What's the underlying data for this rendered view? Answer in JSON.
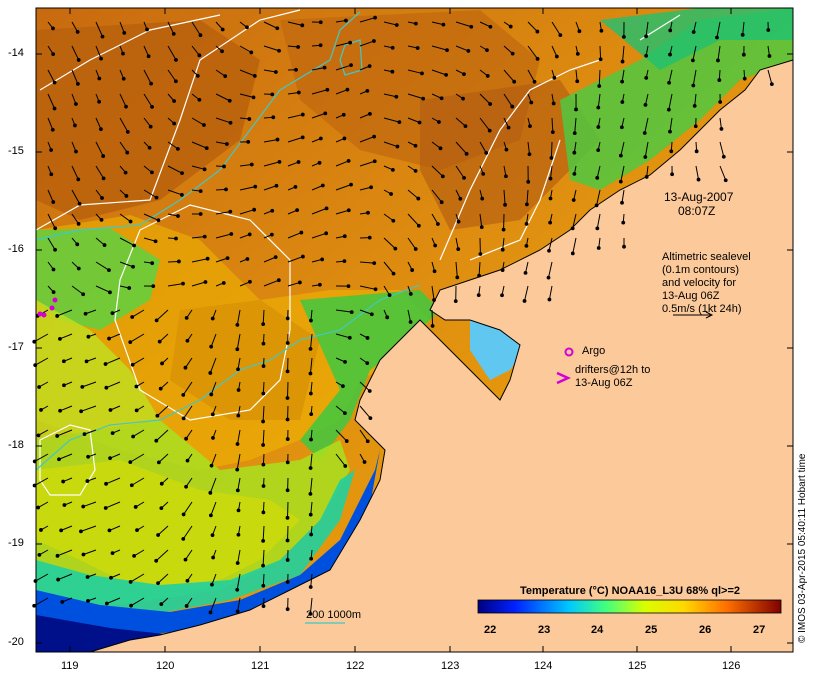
{
  "map": {
    "date_label": "13-Aug-2007",
    "time_label": "08:07Z",
    "legend_altimetric": [
      "Altimetric sealevel",
      "(0.1m contours)",
      "and velocity for",
      "13-Aug 06Z",
      "0.5m/s (1kt 24h)"
    ],
    "legend_argo": "Argo",
    "legend_drifters": [
      "drifters@12h to",
      "13-Aug 06Z"
    ],
    "isobath_label": "200  1000m",
    "credit": "© IMOS 03-Apr-2015 05:40:11 Hobart time",
    "y_ticks": [
      "-14",
      "-15",
      "-16",
      "-17",
      "-18",
      "-19",
      "-20"
    ],
    "x_ticks": [
      "119",
      "120",
      "121",
      "122",
      "123",
      "124",
      "125",
      "126"
    ],
    "colorbar": {
      "title": "Temperature (°C) NOAA16_L3U 68% ql>=2",
      "ticks": [
        "22",
        "23",
        "24",
        "25",
        "26",
        "27"
      ]
    },
    "colors": {
      "land": "#fbc99a",
      "argo": "#d400d4",
      "isobath": "#40c8c8"
    }
  }
}
